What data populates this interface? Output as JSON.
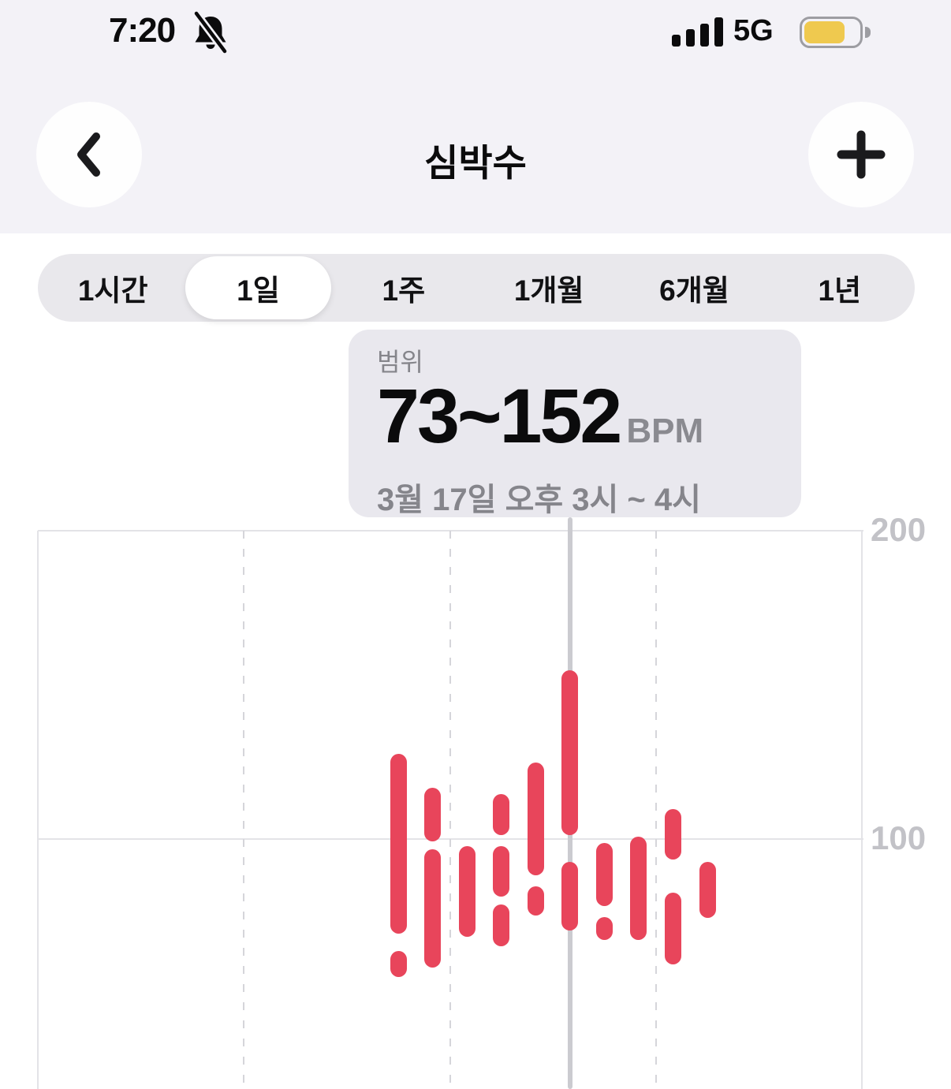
{
  "status_bar": {
    "time": "7:20",
    "network": "5G",
    "battery_fill_ratio": 0.75,
    "icons": [
      "notifications-off-icon",
      "cellular-signal-icon",
      "battery-icon"
    ]
  },
  "header": {
    "title": "심박수",
    "back_icon": "chevron-left-icon",
    "add_icon": "plus-icon"
  },
  "time_range_selector": {
    "options": [
      "1시간",
      "1일",
      "1주",
      "1개월",
      "6개월",
      "1년"
    ],
    "selected": "1일"
  },
  "tooltip": {
    "label": "범위",
    "value": "73~152",
    "unit": "BPM",
    "period": "3월 17일 오후 3시 ~ 4시"
  },
  "chart_data": {
    "type": "bar",
    "subtype": "range-bar-hourly",
    "title": "심박수 1일 차트",
    "ylabel": "BPM",
    "ylim": [
      0,
      200
    ],
    "yticks": [
      200,
      100
    ],
    "x_hours_extent": [
      0,
      24
    ],
    "gridline_hours": [
      0,
      6,
      12,
      18,
      24
    ],
    "grid": true,
    "selected_hour": 15,
    "selected_range": [
      73,
      152
    ],
    "bars": [
      {
        "hour": 10,
        "segments": [
          [
            72,
            125
          ],
          [
            58,
            61
          ]
        ]
      },
      {
        "hour": 11,
        "segments": [
          [
            102,
            114
          ],
          [
            61,
            94
          ]
        ]
      },
      {
        "hour": 12,
        "segments": [
          [
            71,
            95
          ]
        ]
      },
      {
        "hour": 13,
        "segments": [
          [
            104,
            112
          ],
          [
            84,
            95
          ],
          [
            68,
            76
          ]
        ]
      },
      {
        "hour": 14,
        "segments": [
          [
            91,
            122
          ],
          [
            78,
            82
          ]
        ]
      },
      {
        "hour": 15,
        "segments": [
          [
            104,
            152
          ],
          [
            73,
            90
          ]
        ]
      },
      {
        "hour": 16,
        "segments": [
          [
            81,
            96
          ],
          [
            70,
            72
          ]
        ]
      },
      {
        "hour": 17,
        "segments": [
          [
            70,
            98
          ]
        ]
      },
      {
        "hour": 18,
        "segments": [
          [
            96,
            107
          ],
          [
            62,
            80
          ]
        ]
      },
      {
        "hour": 19,
        "segments": [
          [
            77,
            90
          ]
        ]
      }
    ]
  },
  "colors": {
    "bar_red": "#E8455B",
    "header_bg": "#F3F2F7",
    "content_bg": "#FFFFFF",
    "segmented_bg": "#E9E8EC",
    "tooltip_bg": "#E9E8EE",
    "secondary_text": "#85858B",
    "axis_label": "#C2C2C7",
    "grid_solid": "#E3E3E7",
    "grid_dashed": "#D5D5DA",
    "selection_line": "#CBCBD0",
    "battery_yellow": "#EFC94F"
  }
}
